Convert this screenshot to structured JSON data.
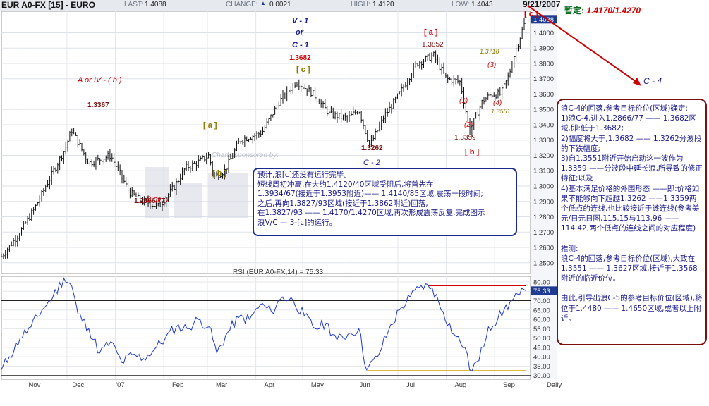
{
  "header": {
    "symbol": "EUR A0-FX [15] - EURO",
    "last_label": "LAST:",
    "last_value": "1.4088",
    "change_label": "CHANGE:",
    "change_value": "0.0021",
    "high_label": "HIGH:",
    "high_value": "1.4120",
    "low_label": "LOW:",
    "low_value": "1.4043",
    "date": "9/21/2007"
  },
  "tentative": {
    "label": "暂定:",
    "value": "1.4170/1.4270"
  },
  "colors": {
    "red": "#d00000",
    "navy": "#1a1a8c",
    "olive": "#8b7d00",
    "brown": "#7a1010",
    "price_badge": "#1f3a93"
  },
  "chart_data": [
    {
      "type": "bar",
      "subtype": "ohlc",
      "price_tag": "1.4088",
      "ylim": [
        1.243,
        1.414
      ],
      "y_ticks": [
        "1.2500",
        "1.2600",
        "1.2700",
        "1.2800",
        "1.2900",
        "1.3000",
        "1.3100",
        "1.3200",
        "1.3300",
        "1.3400",
        "1.3500",
        "1.3600",
        "1.3700",
        "1.3800",
        "1.3900",
        "1.4000"
      ],
      "x_ticks": [
        "Nov",
        "Dec",
        "'07",
        "Feb",
        "Mar",
        "Apr",
        "May",
        "Jun",
        "Jul",
        "Aug",
        "Sep",
        "Daily"
      ],
      "grid": true,
      "closes": [
        [
          "2006-10-20",
          1.254
        ],
        [
          "2006-11-01",
          1.27
        ],
        [
          "2006-11-10",
          1.285
        ],
        [
          "2006-11-20",
          1.305
        ],
        [
          "2006-11-30",
          1.325
        ],
        [
          "2006-12-04",
          1.3367
        ],
        [
          "2006-12-15",
          1.315
        ],
        [
          "2006-12-29",
          1.32
        ],
        [
          "2007-01-10",
          1.296
        ],
        [
          "2007-01-18",
          1.29
        ],
        [
          "2007-01-29",
          1.2867
        ],
        [
          "2007-02-08",
          1.3
        ],
        [
          "2007-02-15",
          1.312
        ],
        [
          "2007-02-22",
          1.315
        ],
        [
          "2007-03-02",
          1.32
        ],
        [
          "2007-03-05",
          1.306
        ],
        [
          "2007-03-12",
          1.31
        ],
        [
          "2007-03-22",
          1.33
        ],
        [
          "2007-04-05",
          1.335
        ],
        [
          "2007-04-16",
          1.355
        ],
        [
          "2007-04-27",
          1.3682
        ],
        [
          "2007-05-08",
          1.36
        ],
        [
          "2007-05-18",
          1.347
        ],
        [
          "2007-05-30",
          1.344
        ],
        [
          "2007-06-06",
          1.35
        ],
        [
          "2007-06-13",
          1.3262
        ],
        [
          "2007-06-22",
          1.345
        ],
        [
          "2007-07-02",
          1.36
        ],
        [
          "2007-07-13",
          1.38
        ],
        [
          "2007-07-24",
          1.3852
        ],
        [
          "2007-08-01",
          1.37
        ],
        [
          "2007-08-10",
          1.368
        ],
        [
          "2007-08-16",
          1.3359
        ],
        [
          "2007-08-24",
          1.355
        ],
        [
          "2007-08-30",
          1.36
        ],
        [
          "2007-09-05",
          1.36
        ],
        [
          "2007-09-10",
          1.3718
        ],
        [
          "2007-09-14",
          1.387
        ],
        [
          "2007-09-21",
          1.4088
        ]
      ],
      "annotations": [
        {
          "text": "A  or IV - ( b )",
          "color": "red"
        },
        {
          "text": "1.3367",
          "color": "brown"
        },
        {
          "text": "1.2866/77",
          "color": "brown"
        },
        {
          "text": "B  or IV",
          "color": "red"
        },
        {
          "text": "[ a ]",
          "color": "olive"
        },
        {
          "text": "[ b ]",
          "color": "olive"
        },
        {
          "text": "V - 1",
          "color": "navy"
        },
        {
          "text": "or",
          "color": "navy"
        },
        {
          "text": "C - 1",
          "color": "navy"
        },
        {
          "text": "1.3682",
          "color": "brown"
        },
        {
          "text": "[ c ]",
          "color": "olive"
        },
        {
          "text": "1.3262",
          "color": "brown"
        },
        {
          "text": "C - 2",
          "color": "navy"
        },
        {
          "text": "[ a ]",
          "color": "red"
        },
        {
          "text": "1.3852",
          "color": "brown"
        },
        {
          "text": "(1)",
          "color": "red"
        },
        {
          "text": "(2)",
          "color": "red"
        },
        {
          "text": "1.3359",
          "color": "brown"
        },
        {
          "text": "[ b ]",
          "color": "red"
        },
        {
          "text": "1.3718",
          "color": "olive"
        },
        {
          "text": "(3)",
          "color": "red"
        },
        {
          "text": "(4)",
          "color": "red"
        },
        {
          "text": "1.3551",
          "color": "olive"
        },
        {
          "text": "[ c ]",
          "color": "red"
        }
      ],
      "watermark": "Charts sponsored by:"
    },
    {
      "type": "line",
      "title": "RSI (EUR A0-FX,14) = 75.33",
      "current": "75.33",
      "ylim": [
        28,
        83
      ],
      "y_ticks": [
        "30.00",
        "35.00",
        "40.00",
        "45.00",
        "50.00",
        "55.00",
        "60.00",
        "65.00",
        "70.00",
        "75.00",
        "80.00"
      ],
      "reference_line": 70,
      "values": [
        [
          "2006-10-20",
          33
        ],
        [
          "2006-10-25",
          40
        ],
        [
          "2006-11-01",
          50
        ],
        [
          "2006-11-08",
          56
        ],
        [
          "2006-11-15",
          65
        ],
        [
          "2006-11-22",
          72
        ],
        [
          "2006-11-29",
          82
        ],
        [
          "2006-12-04",
          78
        ],
        [
          "2006-12-08",
          63
        ],
        [
          "2006-12-15",
          55
        ],
        [
          "2006-12-22",
          42
        ],
        [
          "2006-12-29",
          48
        ],
        [
          "2007-01-05",
          37
        ],
        [
          "2007-01-12",
          41
        ],
        [
          "2007-01-19",
          39
        ],
        [
          "2007-01-26",
          44
        ],
        [
          "2007-02-02",
          50
        ],
        [
          "2007-02-09",
          56
        ],
        [
          "2007-02-16",
          55
        ],
        [
          "2007-02-23",
          60
        ],
        [
          "2007-03-02",
          56
        ],
        [
          "2007-03-07",
          42
        ],
        [
          "2007-03-14",
          53
        ],
        [
          "2007-03-21",
          61
        ],
        [
          "2007-03-28",
          60
        ],
        [
          "2007-04-04",
          68
        ],
        [
          "2007-04-11",
          64
        ],
        [
          "2007-04-18",
          72
        ],
        [
          "2007-04-25",
          70
        ],
        [
          "2007-05-02",
          62
        ],
        [
          "2007-05-09",
          55
        ],
        [
          "2007-05-16",
          58
        ],
        [
          "2007-05-23",
          49
        ],
        [
          "2007-05-30",
          52
        ],
        [
          "2007-06-06",
          55
        ],
        [
          "2007-06-11",
          33
        ],
        [
          "2007-06-18",
          40
        ],
        [
          "2007-06-25",
          54
        ],
        [
          "2007-07-02",
          65
        ],
        [
          "2007-07-09",
          72
        ],
        [
          "2007-07-16",
          78
        ],
        [
          "2007-07-23",
          77
        ],
        [
          "2007-07-30",
          64
        ],
        [
          "2007-08-06",
          52
        ],
        [
          "2007-08-13",
          45
        ],
        [
          "2007-08-16",
          33
        ],
        [
          "2007-08-22",
          38
        ],
        [
          "2007-08-28",
          56
        ],
        [
          "2007-09-03",
          60
        ],
        [
          "2007-09-07",
          65
        ],
        [
          "2007-09-12",
          70
        ],
        [
          "2007-09-17",
          73
        ],
        [
          "2007-09-21",
          75.33
        ]
      ],
      "resistance": {
        "from": "2007-07-20",
        "to": "2007-09-21",
        "value": 78
      },
      "support": {
        "from": "2007-06-11",
        "to": "2007-09-21",
        "value": 32.5
      }
    }
  ],
  "wave_label": "C - 4",
  "note_box_1": [
    "预计,浪[c]还没有运行完毕。",
    "短线周初冲高,在大约1.4120/40区域受阻后,将首先在",
    "1.3934/67(接近于1.3953附近)—— 1.4140/85区域,震荡一段时间;",
    "之后,再向1.3827/93区域(接近于1.3862附近)回落,",
    "在1.3827/93 —— 1.4170/1.4270区域,再次形成震荡反复,完成图示",
    "浪V/C — 3-[c]的运行。"
  ],
  "note_box_2": [
    "浪C-4的回落,参考目标价位(区域)确定:",
    "1)浪C-4,进入1.2866/77 —— 1.3682区域,即:低于1.3682;",
    "2)幅度将大于,1.3682 —— 1.3262分波段的下跌幅度;",
    "3)自1.3551附近开始启动这一波作为1.3359 ——分波段中延长浪,所导致的修正特征;以及",
    "4)基本满足价格的外围形态 ——即:价格如果不能够向下超越1.3262 ——1.3359两个低点的连线,也比较接近于该连线(参考美元/日元日图,115.15与113.96 ——114.42,两个低点的连线之间的对应程度)",
    "",
    "推测:",
    "浪C-4的回落,参考目标价位(区域),大致在1.3551 —— 1.3627区域,接近于1.3568附近的临近价位。",
    "",
    "由此,引导出浪C-5的参考目标价位(区域),将位于1.4480 —— 1.4650区域,或者以上附近。"
  ]
}
